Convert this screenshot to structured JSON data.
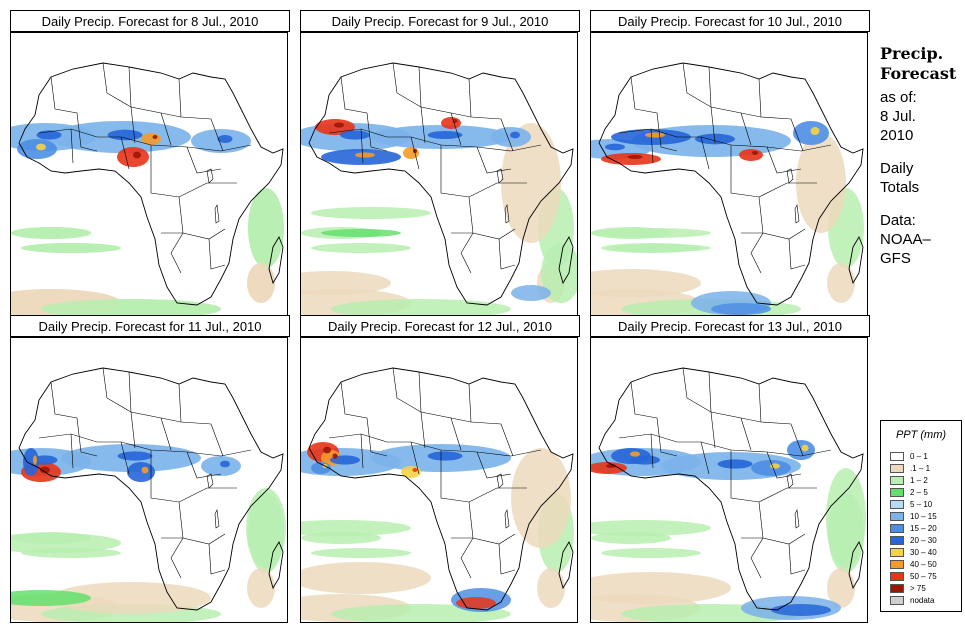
{
  "panels": [
    {
      "title": "Daily Precip. Forecast for  8 Jul., 2010"
    },
    {
      "title": "Daily Precip. Forecast for  9 Jul., 2010"
    },
    {
      "title": "Daily Precip. Forecast for  10 Jul., 2010"
    },
    {
      "title": "Daily Precip. Forecast for  11 Jul., 2010"
    },
    {
      "title": "Daily Precip. Forecast for  12 Jul., 2010"
    },
    {
      "title": "Daily Precip. Forecast for  13 Jul., 2010"
    }
  ],
  "side": {
    "heading1": "Precip.",
    "heading2": "Forecast",
    "asof": "as of:",
    "date1": "8 Jul.",
    "date2": "2010",
    "daily1": "Daily",
    "daily2": "Totals",
    "data1": "Data:",
    "data2": "NOAA–",
    "data3": "GFS"
  },
  "legend": {
    "title": "PPT (mm)",
    "items": [
      {
        "label": "0 – 1",
        "color": "#ffffff"
      },
      {
        "label": ".1 – 1",
        "color": "#ecd9bd"
      },
      {
        "label": "1 – 2",
        "color": "#b7efb0"
      },
      {
        "label": "2 – 5",
        "color": "#63e06c"
      },
      {
        "label": "5 – 10",
        "color": "#b4dcf2"
      },
      {
        "label": "10 – 15",
        "color": "#7ab2ea"
      },
      {
        "label": "15 – 20",
        "color": "#4d8ee4"
      },
      {
        "label": "20 – 30",
        "color": "#2666d8"
      },
      {
        "label": "30 – 40",
        "color": "#f5d348"
      },
      {
        "label": "40 – 50",
        "color": "#f59a2a"
      },
      {
        "label": "50 – 75",
        "color": "#e83417"
      },
      {
        "label": "> 75",
        "color": "#9c1606"
      },
      {
        "label": "nodata",
        "color": "#cfcfcf"
      }
    ]
  }
}
